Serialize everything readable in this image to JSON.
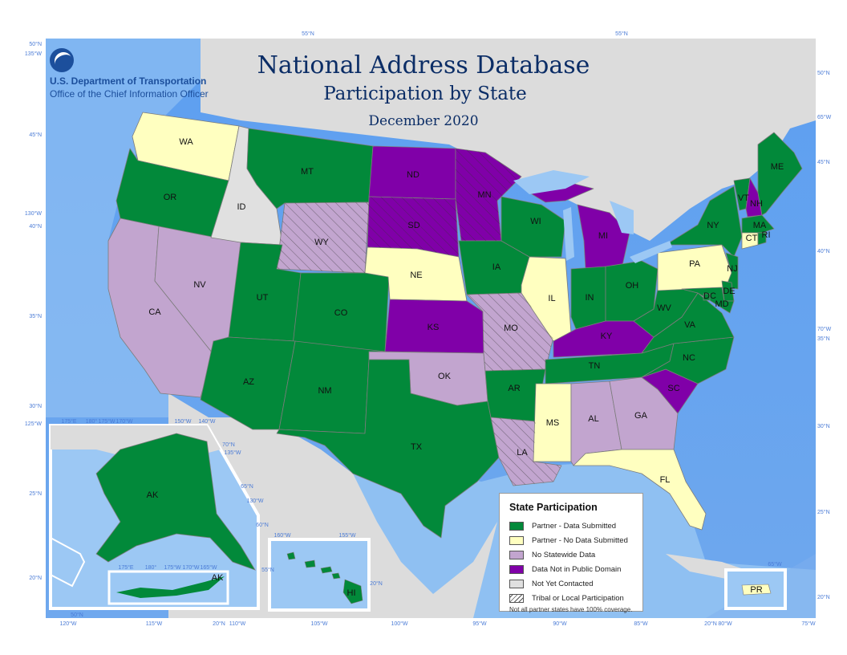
{
  "title": "National Address Database",
  "subtitle": "Participation by State",
  "date": "December 2020",
  "agency": {
    "name": "U.S. Department of Transportation",
    "office": "Office of the Chief Information Officer"
  },
  "colors": {
    "submitted": "#02893a",
    "no_data": "#ffffc0",
    "no_statewide": "#c2a5cf",
    "not_public": "#8000a8",
    "not_contacted": "#e0e0e0",
    "ocean": "#86b9ef",
    "land_other": "#dcdcdc"
  },
  "legend": {
    "title": "State Participation",
    "items": [
      {
        "label": "Partner - Data Submitted",
        "color": "#02893a"
      },
      {
        "label": "Partner - No Data Submitted",
        "color": "#ffffc0"
      },
      {
        "label": "No Statewide Data",
        "color": "#c2a5cf"
      },
      {
        "label": "Data Not in Public Domain",
        "color": "#8000a8"
      },
      {
        "label": "Not Yet Contacted",
        "color": "#e0e0e0"
      },
      {
        "label": "Tribal or Local Participation",
        "color": "hatch"
      }
    ],
    "note": "Not all partner states have 100% coverage."
  },
  "states": {
    "WA": "no_data",
    "OR": "submitted",
    "CA": "no_statewide",
    "NV": "no_statewide",
    "ID": "not_contacted",
    "MT": "submitted",
    "WY": "no_statewide",
    "UT": "submitted",
    "CO": "submitted",
    "AZ": "submitted",
    "NM": "submitted",
    "ND": "not_public",
    "SD": "not_public",
    "NE": "no_data",
    "KS": "not_public",
    "OK": "no_statewide",
    "TX": "submitted",
    "MN": "not_public",
    "IA": "submitted",
    "MO": "no_statewide",
    "AR": "submitted",
    "LA": "no_statewide",
    "WI": "submitted",
    "IL": "no_data",
    "MI": "not_public",
    "IN": "submitted",
    "OH": "submitted",
    "KY": "not_public",
    "TN": "submitted",
    "MS": "no_data",
    "AL": "no_statewide",
    "GA": "no_statewide",
    "FL": "no_data",
    "SC": "not_public",
    "NC": "submitted",
    "VA": "submitted",
    "WV": "submitted",
    "PA": "no_data",
    "NY": "submitted",
    "VT": "submitted",
    "NH": "not_public",
    "ME": "submitted",
    "MA": "submitted",
    "CT": "no_data",
    "RI": "submitted",
    "NJ": "submitted",
    "DE": "submitted",
    "MD": "submitted",
    "DC": "submitted",
    "AK": "submitted",
    "HI": "submitted",
    "PR": "no_data"
  },
  "tribal": [
    "WY",
    "SD",
    "MN",
    "MO",
    "LA"
  ],
  "labels": {
    "WA": "WA",
    "OR": "OR",
    "CA": "CA",
    "NV": "NV",
    "ID": "ID",
    "MT": "MT",
    "WY": "WY",
    "UT": "UT",
    "CO": "CO",
    "AZ": "AZ",
    "NM": "NM",
    "ND": "ND",
    "SD": "SD",
    "NE": "NE",
    "KS": "KS",
    "OK": "OK",
    "TX": "TX",
    "MN": "MN",
    "IA": "IA",
    "MO": "MO",
    "AR": "AR",
    "LA": "LA",
    "WI": "WI",
    "IL": "IL",
    "MI": "MI",
    "IN": "IN",
    "OH": "OH",
    "KY": "KY",
    "TN": "TN",
    "MS": "MS",
    "AL": "AL",
    "GA": "GA",
    "FL": "FL",
    "SC": "SC",
    "NC": "NC",
    "VA": "VA",
    "WV": "WV",
    "PA": "PA",
    "NY": "NY",
    "VT": "VT",
    "NH": "NH",
    "ME": "ME",
    "MA": "MA",
    "CT": "CT",
    "RI": "RI",
    "NJ": "NJ",
    "DE": "DE",
    "MD": "MD",
    "DC": "DC",
    "AK": "AK",
    "AK2": "AK",
    "HI": "HI",
    "PR": "PR"
  },
  "graticule": {
    "top": [
      "55°N",
      "55°N"
    ],
    "left": [
      "50°N",
      "135°W",
      "45°N",
      "130°W",
      "40°N",
      "35°N",
      "30°N",
      "125°W",
      "25°N",
      "20°N"
    ],
    "right": [
      "50°N",
      "65°W",
      "45°N",
      "40°N",
      "70°W",
      "35°N",
      "30°N",
      "25°N",
      "20°N"
    ],
    "bottom": [
      "120°W",
      "115°W",
      "20°N",
      "110°W",
      "105°W",
      "100°W",
      "95°W",
      "90°W",
      "85°W",
      "20°N",
      "80°W",
      "75°W"
    ],
    "inset": [
      "175°E",
      "180°",
      "175°W",
      "170°W",
      "150°W",
      "140°W",
      "70°N",
      "135°W",
      "65°N",
      "130°W",
      "60°N",
      "55°N",
      "50°N",
      "160°W",
      "155°W",
      "20°N",
      "175°E",
      "180°",
      "175°W",
      "170°W",
      "165°W",
      "65°W"
    ]
  }
}
